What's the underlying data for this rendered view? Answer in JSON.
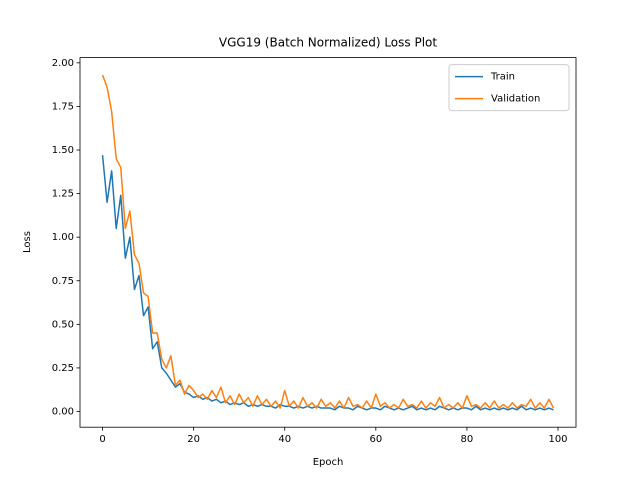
{
  "chart_data": {
    "type": "line",
    "title": "VGG19 (Batch Normalized) Loss Plot",
    "xlabel": "Epoch",
    "ylabel": "Loss",
    "x": [
      0,
      1,
      2,
      3,
      4,
      5,
      6,
      7,
      8,
      9,
      10,
      11,
      12,
      13,
      14,
      15,
      16,
      17,
      18,
      19,
      20,
      21,
      22,
      23,
      24,
      25,
      26,
      27,
      28,
      29,
      30,
      31,
      32,
      33,
      34,
      35,
      36,
      37,
      38,
      39,
      40,
      41,
      42,
      43,
      44,
      45,
      46,
      47,
      48,
      49,
      50,
      51,
      52,
      53,
      54,
      55,
      56,
      57,
      58,
      59,
      60,
      61,
      62,
      63,
      64,
      65,
      66,
      67,
      68,
      69,
      70,
      71,
      72,
      73,
      74,
      75,
      76,
      77,
      78,
      79,
      80,
      81,
      82,
      83,
      84,
      85,
      86,
      87,
      88,
      89,
      90,
      91,
      92,
      93,
      94,
      95,
      96,
      97,
      98,
      99
    ],
    "series": [
      {
        "name": "Train",
        "color": "#1f77b4",
        "values": [
          1.47,
          1.2,
          1.38,
          1.05,
          1.24,
          0.88,
          1.0,
          0.7,
          0.78,
          0.55,
          0.6,
          0.36,
          0.4,
          0.25,
          0.22,
          0.18,
          0.14,
          0.16,
          0.11,
          0.1,
          0.08,
          0.09,
          0.07,
          0.08,
          0.06,
          0.07,
          0.05,
          0.06,
          0.04,
          0.05,
          0.04,
          0.05,
          0.03,
          0.04,
          0.03,
          0.04,
          0.03,
          0.03,
          0.02,
          0.04,
          0.03,
          0.03,
          0.02,
          0.03,
          0.02,
          0.03,
          0.02,
          0.03,
          0.02,
          0.02,
          0.02,
          0.01,
          0.03,
          0.02,
          0.02,
          0.01,
          0.03,
          0.02,
          0.01,
          0.02,
          0.02,
          0.01,
          0.03,
          0.02,
          0.01,
          0.02,
          0.01,
          0.02,
          0.03,
          0.01,
          0.02,
          0.01,
          0.02,
          0.01,
          0.03,
          0.02,
          0.01,
          0.02,
          0.01,
          0.02,
          0.02,
          0.01,
          0.03,
          0.01,
          0.02,
          0.01,
          0.02,
          0.01,
          0.02,
          0.01,
          0.02,
          0.01,
          0.03,
          0.01,
          0.02,
          0.01,
          0.02,
          0.01,
          0.02,
          0.01
        ]
      },
      {
        "name": "Validation",
        "color": "#ff7f0e",
        "values": [
          1.93,
          1.86,
          1.72,
          1.45,
          1.4,
          1.05,
          1.15,
          0.9,
          0.85,
          0.68,
          0.66,
          0.45,
          0.45,
          0.3,
          0.25,
          0.32,
          0.15,
          0.18,
          0.1,
          0.15,
          0.12,
          0.08,
          0.1,
          0.07,
          0.12,
          0.08,
          0.14,
          0.05,
          0.09,
          0.04,
          0.1,
          0.05,
          0.08,
          0.03,
          0.09,
          0.04,
          0.07,
          0.03,
          0.06,
          0.02,
          0.12,
          0.03,
          0.06,
          0.02,
          0.08,
          0.03,
          0.05,
          0.02,
          0.07,
          0.03,
          0.05,
          0.02,
          0.06,
          0.02,
          0.08,
          0.03,
          0.04,
          0.02,
          0.06,
          0.02,
          0.1,
          0.03,
          0.05,
          0.02,
          0.04,
          0.02,
          0.07,
          0.03,
          0.04,
          0.02,
          0.06,
          0.02,
          0.05,
          0.03,
          0.08,
          0.02,
          0.04,
          0.02,
          0.05,
          0.02,
          0.09,
          0.03,
          0.04,
          0.02,
          0.05,
          0.02,
          0.06,
          0.02,
          0.04,
          0.02,
          0.05,
          0.02,
          0.04,
          0.03,
          0.07,
          0.02,
          0.05,
          0.02,
          0.07,
          0.02
        ]
      }
    ],
    "xlim": [
      -4.95,
      103.95
    ],
    "xticks": [
      0,
      20,
      40,
      60,
      80,
      100
    ],
    "ylim": [
      -0.09,
      2.03
    ],
    "yticks": [
      {
        "value": 0,
        "label": "0.00"
      },
      {
        "value": 0.25,
        "label": "0.25"
      },
      {
        "value": 0.5,
        "label": "0.50"
      },
      {
        "value": 0.75,
        "label": "0.75"
      },
      {
        "value": 1,
        "label": "1.00"
      },
      {
        "value": 1.25,
        "label": "1.25"
      },
      {
        "value": 1.5,
        "label": "1.50"
      },
      {
        "value": 1.75,
        "label": "1.75"
      },
      {
        "value": 2,
        "label": "2.00"
      }
    ],
    "legend": "upper right"
  }
}
